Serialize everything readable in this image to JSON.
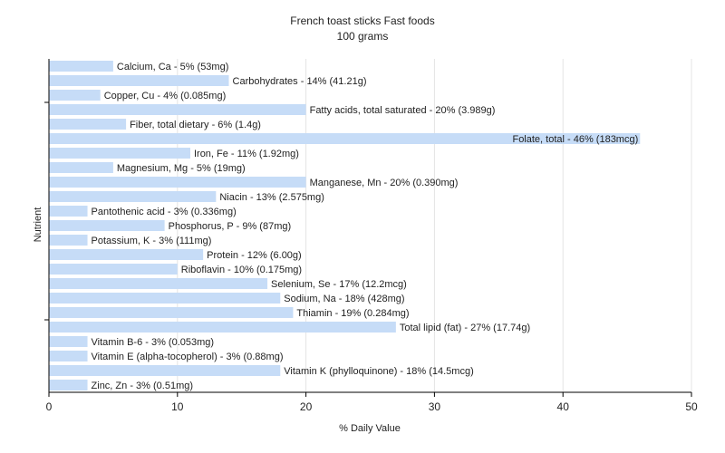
{
  "chart_data": {
    "type": "bar",
    "orientation": "horizontal",
    "title": "French toast sticks Fast foods",
    "subtitle": "100 grams",
    "xlabel": "% Daily Value",
    "ylabel": "Nutrient",
    "xlim": [
      0,
      50
    ],
    "xticks": [
      0,
      10,
      20,
      30,
      40,
      50
    ],
    "grid": true,
    "bar_color": "#c6dcf7",
    "grid_color": "#e4e4e4",
    "categories": [
      "Calcium, Ca",
      "Carbohydrates",
      "Copper, Cu",
      "Fatty acids, total saturated",
      "Fiber, total dietary",
      "Folate, total",
      "Iron, Fe",
      "Magnesium, Mg",
      "Manganese, Mn",
      "Niacin",
      "Pantothenic acid",
      "Phosphorus, P",
      "Potassium, K",
      "Protein",
      "Riboflavin",
      "Selenium, Se",
      "Sodium, Na",
      "Thiamin",
      "Total lipid (fat)",
      "Vitamin B-6",
      "Vitamin E (alpha-tocopherol)",
      "Vitamin K (phylloquinone)",
      "Zinc, Zn"
    ],
    "values": [
      5,
      14,
      4,
      20,
      6,
      46,
      11,
      5,
      20,
      13,
      3,
      9,
      3,
      12,
      10,
      17,
      18,
      19,
      27,
      3,
      3,
      18,
      3
    ],
    "labels": [
      "Calcium, Ca - 5% (53mg)",
      "Carbohydrates - 14% (41.21g)",
      "Copper, Cu - 4% (0.085mg)",
      "Fatty acids, total saturated - 20% (3.989g)",
      "Fiber, total dietary - 6% (1.4g)",
      "Folate, total - 46% (183mcg)",
      "Iron, Fe - 11% (1.92mg)",
      "Magnesium, Mg - 5% (19mg)",
      "Manganese, Mn - 20% (0.390mg)",
      "Niacin - 13% (2.575mg)",
      "Pantothenic acid - 3% (0.336mg)",
      "Phosphorus, P - 9% (87mg)",
      "Potassium, K - 3% (111mg)",
      "Protein - 12% (6.00g)",
      "Riboflavin - 10% (0.175mg)",
      "Selenium, Se - 17% (12.2mcg)",
      "Sodium, Na - 18% (428mg)",
      "Thiamin - 19% (0.284mg)",
      "Total lipid (fat) - 27% (17.74g)",
      "Vitamin B-6 - 3% (0.053mg)",
      "Vitamin E (alpha-tocopherol) - 3% (0.88mg)",
      "Vitamin K (phylloquinone) - 18% (14.5mcg)",
      "Zinc, Zn - 3% (0.51mg)"
    ]
  }
}
